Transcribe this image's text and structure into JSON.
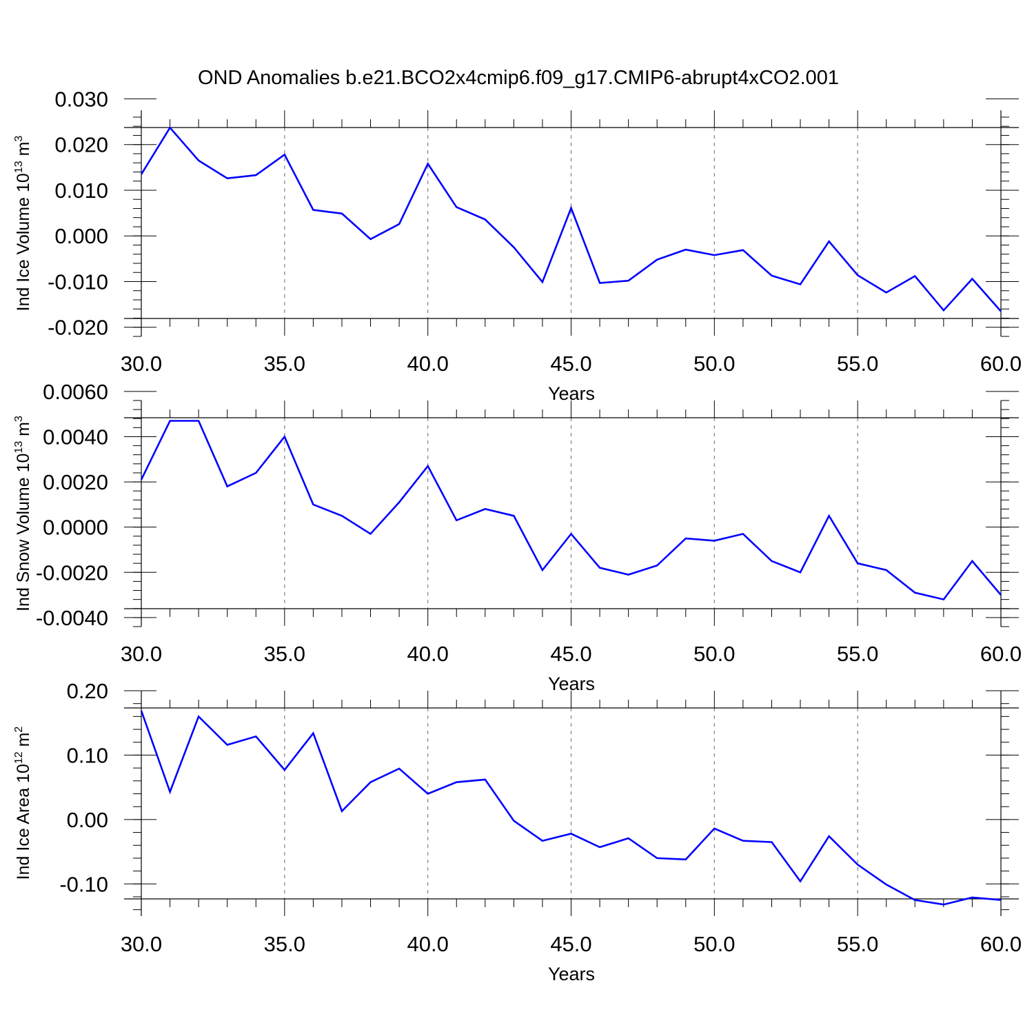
{
  "title": "OND Anomalies b.e21.BCO2x4cmip6.f09_g17.CMIP6-abrupt4xCO2.001",
  "colors": {
    "line": "#0000ff",
    "axis": "#000000",
    "grid": "#808080",
    "background": "#ffffff"
  },
  "chart_data": [
    {
      "type": "line",
      "ylabel": "Ind Ice Volume 10",
      "ylabel_exp": "13",
      "ylabel_unit": " m",
      "ylabel_unit_exp": "3",
      "xlabel": "Years",
      "xlim": [
        30,
        60
      ],
      "ylim": [
        -0.022,
        0.0275
      ],
      "x_ticks": [
        30,
        35,
        40,
        45,
        50,
        55,
        60
      ],
      "x_tick_labels": [
        "30.0",
        "35.0",
        "40.0",
        "45.0",
        "50.0",
        "55.0",
        "60.0"
      ],
      "y_ticks": [
        -0.02,
        -0.01,
        0.0,
        0.01,
        0.02,
        0.03
      ],
      "y_tick_labels": [
        "-0.020",
        "-0.010",
        "0.000",
        "0.010",
        "0.020",
        "0.030"
      ],
      "y_minor_step": 0.002,
      "grid": "vertical dashed at major x ticks",
      "series": [
        {
          "x": [
            30,
            31,
            32,
            33,
            34,
            35,
            36,
            37,
            38,
            39,
            40,
            41,
            42,
            43,
            44,
            45,
            46,
            47,
            48,
            49,
            50,
            51,
            52,
            53,
            54,
            55,
            56,
            57,
            58,
            59,
            60
          ],
          "values": [
            0.0135,
            0.0237,
            0.0165,
            0.0126,
            0.0133,
            0.0178,
            0.0057,
            0.0049,
            -0.0007,
            0.0026,
            0.0158,
            0.0063,
            0.0036,
            -0.0025,
            -0.0101,
            0.0061,
            -0.0103,
            -0.0098,
            -0.0052,
            -0.003,
            -0.0042,
            -0.0031,
            -0.0087,
            -0.0106,
            -0.0012,
            -0.0086,
            -0.0124,
            -0.0088,
            -0.0163,
            -0.0094,
            -0.0165
          ]
        }
      ]
    },
    {
      "type": "line",
      "ylabel": "Ind Snow Volume 10",
      "ylabel_exp": "13",
      "ylabel_unit": " m",
      "ylabel_unit_exp": "3",
      "xlabel": "Years",
      "xlim": [
        30,
        60
      ],
      "ylim": [
        -0.0044,
        0.0056
      ],
      "x_ticks": [
        30,
        35,
        40,
        45,
        50,
        55,
        60
      ],
      "x_tick_labels": [
        "30.0",
        "35.0",
        "40.0",
        "45.0",
        "50.0",
        "55.0",
        "60.0"
      ],
      "y_ticks": [
        -0.004,
        -0.002,
        0.0,
        0.002,
        0.004,
        0.006
      ],
      "y_tick_labels": [
        "-0.0040",
        "-0.0020",
        "0.0000",
        "0.0020",
        "0.0040",
        "0.0060"
      ],
      "y_minor_step": 0.0004,
      "grid": "vertical dashed at major x ticks",
      "series": [
        {
          "x": [
            30,
            31,
            32,
            33,
            34,
            35,
            36,
            37,
            38,
            39,
            40,
            41,
            42,
            43,
            44,
            45,
            46,
            47,
            48,
            49,
            50,
            51,
            52,
            53,
            54,
            55,
            56,
            57,
            58,
            59,
            60
          ],
          "values": [
            0.0021,
            0.0047,
            0.0047,
            0.0018,
            0.0024,
            0.004,
            0.001,
            0.0005,
            -0.0003,
            0.0011,
            0.0027,
            0.0003,
            0.0008,
            0.0005,
            -0.0019,
            -0.0003,
            -0.0018,
            -0.0021,
            -0.0017,
            -0.0005,
            -0.0006,
            -0.0003,
            -0.0015,
            -0.002,
            0.0005,
            -0.0016,
            -0.0019,
            -0.0029,
            -0.0032,
            -0.0015,
            -0.003
          ]
        }
      ]
    },
    {
      "type": "line",
      "ylabel": "Ind Ice Area 10",
      "ylabel_exp": "12",
      "ylabel_unit": " m",
      "ylabel_unit_exp": "2",
      "xlabel": "Years",
      "xlim": [
        30,
        60
      ],
      "ylim": [
        -0.15,
        0.2
      ],
      "x_ticks": [
        30,
        35,
        40,
        45,
        50,
        55,
        60
      ],
      "x_tick_labels": [
        "30.0",
        "35.0",
        "40.0",
        "45.0",
        "50.0",
        "55.0",
        "60.0"
      ],
      "y_ticks": [
        -0.1,
        0.0,
        0.1,
        0.2
      ],
      "y_tick_labels": [
        "-0.10",
        "0.00",
        "0.10",
        "0.20"
      ],
      "y_minor_step": 0.02,
      "grid": "vertical dashed at major x ticks",
      "series": [
        {
          "x": [
            30,
            31,
            32,
            33,
            34,
            35,
            36,
            37,
            38,
            39,
            40,
            41,
            42,
            43,
            44,
            45,
            46,
            47,
            48,
            49,
            50,
            51,
            52,
            53,
            54,
            55,
            56,
            57,
            58,
            59,
            60
          ],
          "values": [
            0.169,
            0.043,
            0.16,
            0.116,
            0.129,
            0.077,
            0.134,
            0.013,
            0.058,
            0.079,
            0.04,
            0.058,
            0.062,
            -0.002,
            -0.033,
            -0.022,
            -0.043,
            -0.029,
            -0.06,
            -0.062,
            -0.014,
            -0.033,
            -0.035,
            -0.096,
            -0.026,
            -0.07,
            -0.101,
            -0.125,
            -0.132,
            -0.121,
            -0.125
          ]
        }
      ]
    }
  ]
}
